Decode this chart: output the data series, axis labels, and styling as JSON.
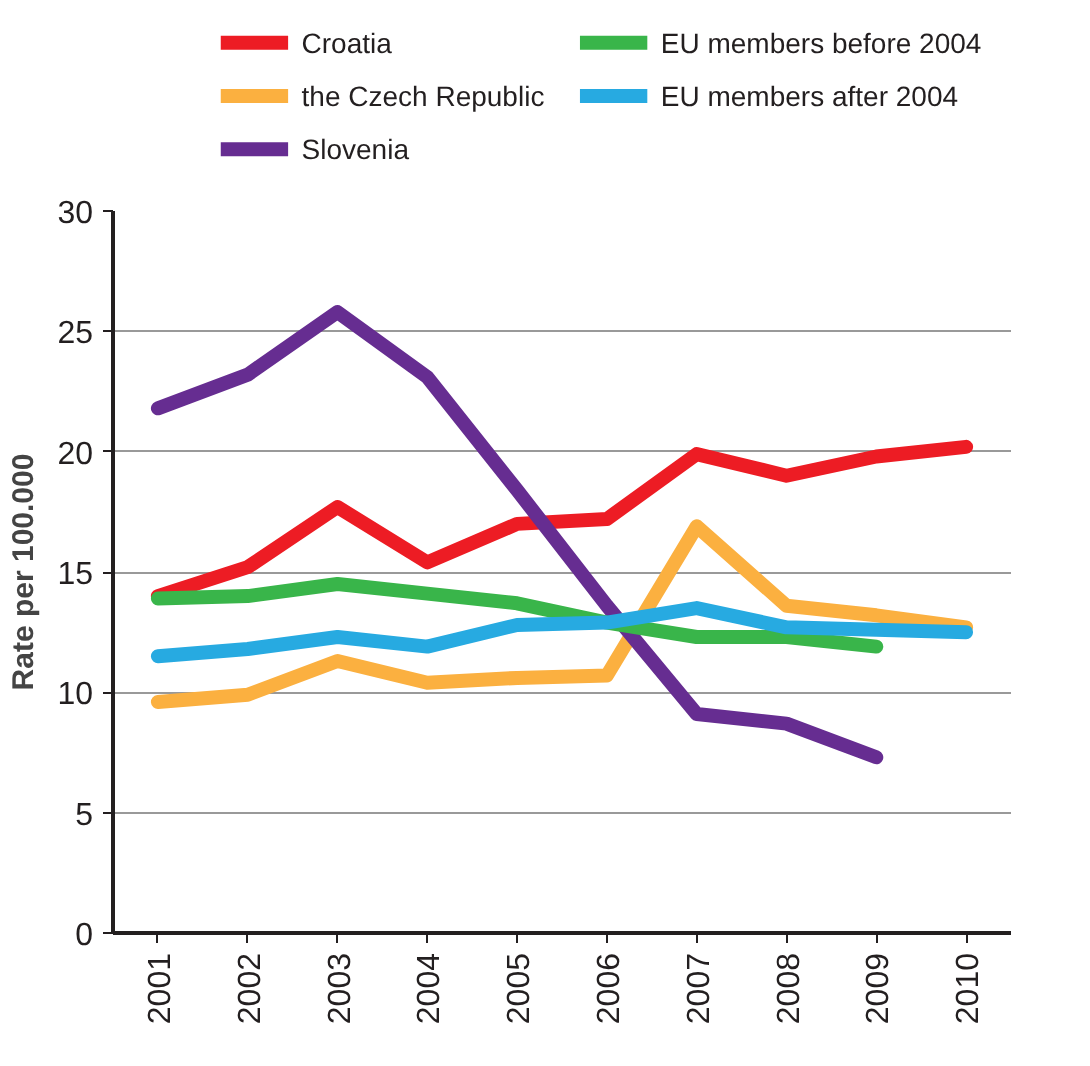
{
  "chart_data": {
    "type": "line",
    "ylabel": "Rate per 100.000",
    "categories": [
      "2001",
      "2002",
      "2003",
      "2004",
      "2005",
      "2006",
      "2007",
      "2008",
      "2009",
      "2010"
    ],
    "ylim": [
      0,
      30
    ],
    "yticks": [
      0,
      5,
      10,
      15,
      20,
      25,
      30
    ],
    "grid": "y",
    "legend": "top",
    "line_style": "solid",
    "marker": "none",
    "series": [
      {
        "name": "Croatia",
        "color": "#ed1c24",
        "values": [
          14.0,
          15.2,
          17.7,
          15.4,
          17.0,
          17.2,
          19.9,
          19.0,
          19.8,
          20.2
        ]
      },
      {
        "name": "the Czech Republic",
        "color": "#fbb040",
        "values": [
          9.6,
          9.9,
          11.3,
          10.4,
          10.6,
          10.7,
          16.9,
          13.6,
          13.2,
          12.7
        ]
      },
      {
        "name": "Slovenia",
        "color": "#662d91",
        "values": [
          21.8,
          23.2,
          25.8,
          23.1,
          18.4,
          13.6,
          9.1,
          8.7,
          7.3,
          null
        ]
      },
      {
        "name": "EU members before 2004",
        "color": "#39b54a",
        "values": [
          13.9,
          14.0,
          14.5,
          14.1,
          13.7,
          12.9,
          12.3,
          12.3,
          11.9,
          null
        ]
      },
      {
        "name": "EU members after 2004",
        "color": "#27aae1",
        "values": [
          11.5,
          11.8,
          12.3,
          11.9,
          12.8,
          12.9,
          13.5,
          12.7,
          12.6,
          12.5
        ]
      }
    ]
  }
}
